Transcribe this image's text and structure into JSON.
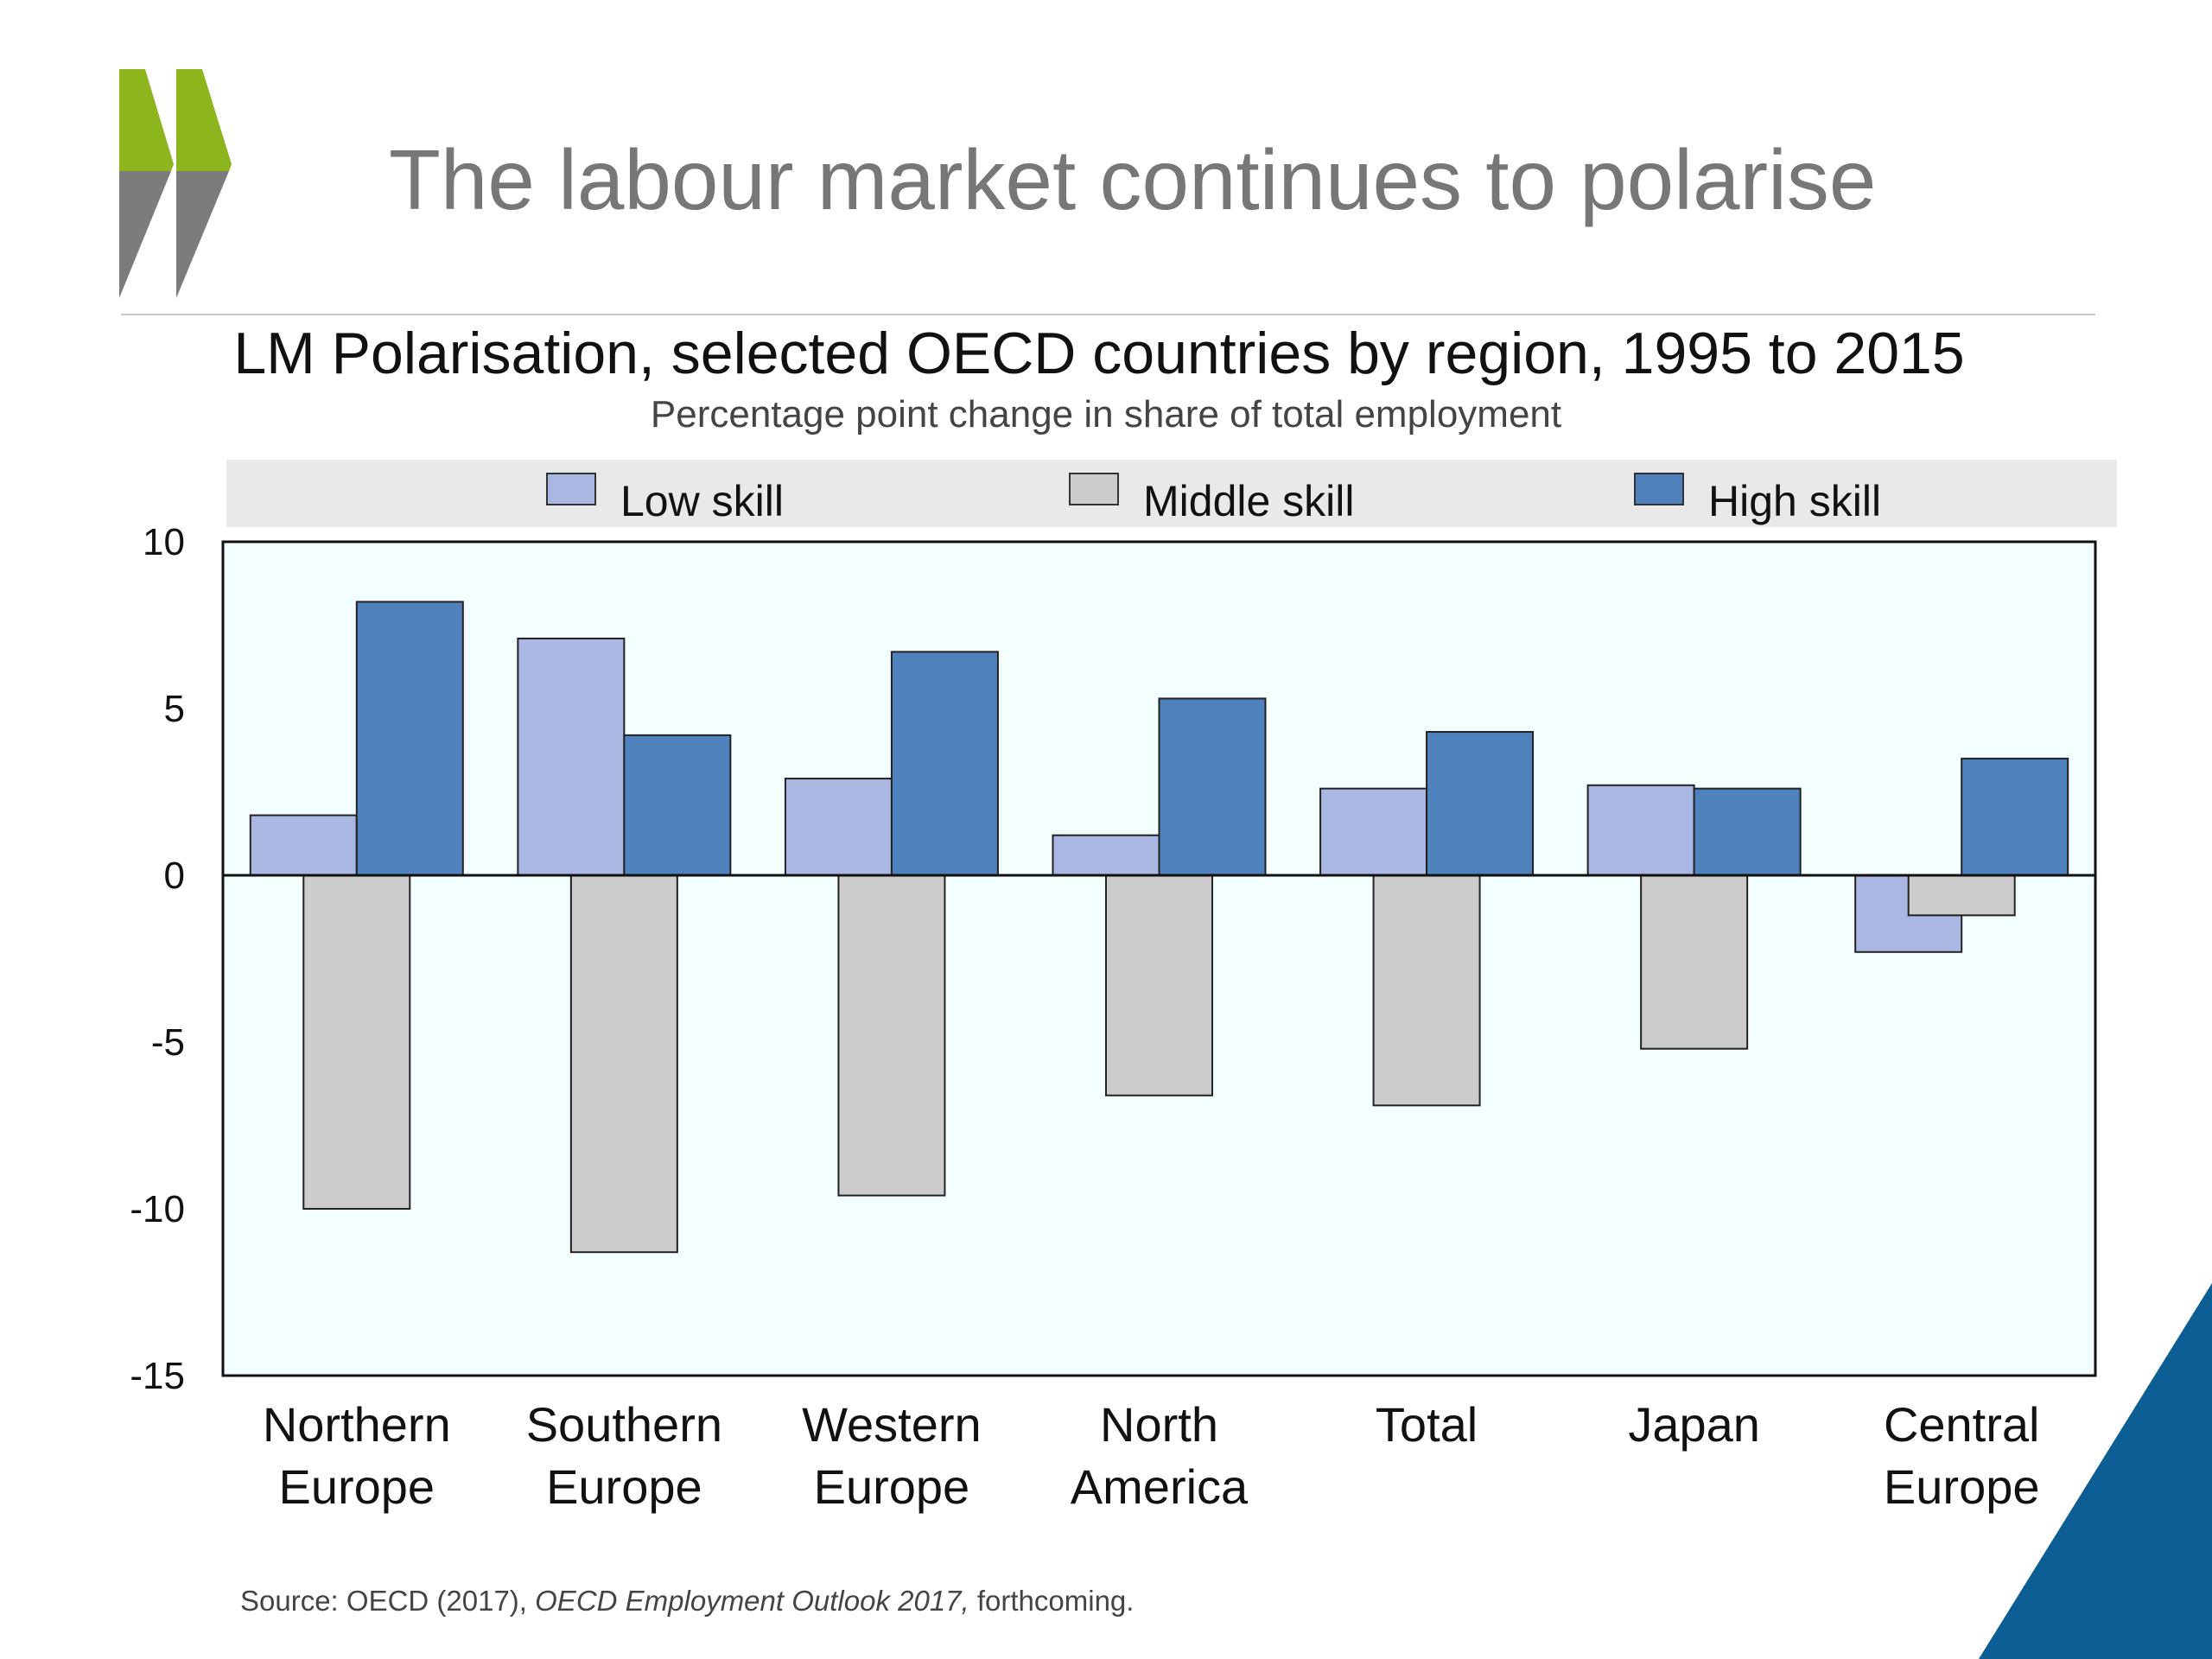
{
  "slide": {
    "title": "The labour market continues to polarise",
    "logo_colors": {
      "green": "#8db61e",
      "gray": "#7c7c7c"
    },
    "accent_color": "#0b5d94"
  },
  "source": {
    "prefix": "Source: OECD (2017), ",
    "publication": "OECD Employment Outlook 2017,",
    "suffix": " forthcoming."
  },
  "chart_data": {
    "type": "bar",
    "title": "LM Polarisation, selected OECD countries by region, 1995 to 2015",
    "subtitle": "Percentage point change in share of total employment",
    "categories": [
      [
        "Northern",
        "Europe"
      ],
      [
        "Southern",
        "Europe"
      ],
      [
        "Western",
        "Europe"
      ],
      [
        "North",
        "America"
      ],
      [
        "Total"
      ],
      [
        "Japan"
      ],
      [
        "Central",
        "Europe"
      ]
    ],
    "series": [
      {
        "name": "Low skill",
        "color": "#a9b7e2",
        "values": [
          1.8,
          7.1,
          2.9,
          1.2,
          2.6,
          2.7,
          -2.3
        ]
      },
      {
        "name": "Middle skill",
        "color": "#cccccc",
        "values": [
          -10.0,
          -11.3,
          -9.6,
          -6.6,
          -6.9,
          -5.2,
          -1.2
        ]
      },
      {
        "name": "High skill",
        "color": "#4f81bd",
        "values": [
          8.2,
          4.2,
          6.7,
          5.3,
          4.3,
          2.6,
          3.5
        ]
      }
    ],
    "ylim": [
      -15,
      10
    ],
    "yticks": [
      10,
      5,
      0,
      -5,
      -10,
      -15
    ],
    "xlabel": "",
    "ylabel": "",
    "legend": "top",
    "grid": false,
    "plot_background": "#f3feff"
  }
}
